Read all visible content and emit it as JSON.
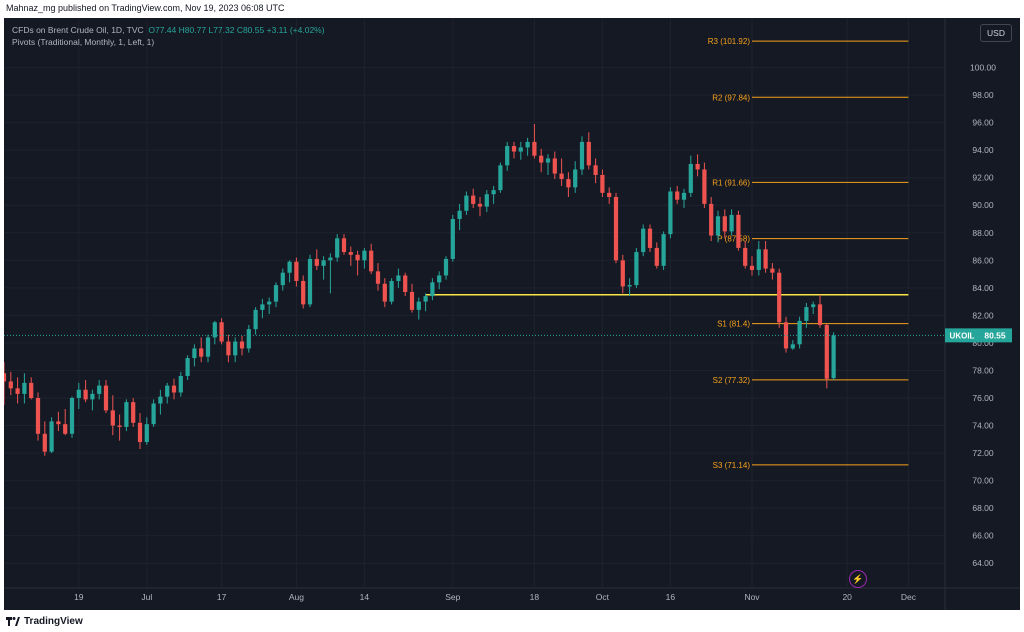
{
  "header": {
    "published": "Mahnaz_mg published on TradingView.com, Nov 19, 2023 06:08 UTC"
  },
  "legend": {
    "symbol": "CFDs on Brent Crude Oil, 1D, TVC",
    "o": "O77.44",
    "h": "H80.77",
    "l": "L77.32",
    "c": "C80.55",
    "chg": "+3.11 (+4.02%)",
    "indicator": "Pivots (Traditional, Monthly, 1, Left, 1)"
  },
  "currency_button": "USD",
  "footer": {
    "brand": "TradingView"
  },
  "colors": {
    "up": "#26a69a",
    "down": "#ef5350",
    "pivot": "#f7a21b",
    "level": "#f9e547",
    "bg": "#151924"
  },
  "chart_data": {
    "type": "candlestick",
    "symbol": "UKOIL",
    "last_price": {
      "label": "UKOIL",
      "value": "80.55"
    },
    "y_axis": {
      "range": [
        62.2,
        103.6
      ],
      "ticks": [
        "100.00",
        "98.00",
        "96.00",
        "94.00",
        "92.00",
        "90.00",
        "88.00",
        "86.00",
        "84.00",
        "82.00",
        "80.00",
        "78.00",
        "76.00",
        "74.00",
        "72.00",
        "70.00",
        "68.00",
        "66.00",
        "64.00"
      ]
    },
    "x_axis": {
      "range_bars": [
        0,
        150
      ],
      "ticks": [
        {
          "label": "19",
          "bar": 11
        },
        {
          "label": "Jul",
          "bar": 21
        },
        {
          "label": "17",
          "bar": 32
        },
        {
          "label": "Aug",
          "bar": 43
        },
        {
          "label": "14",
          "bar": 53
        },
        {
          "label": "Sep",
          "bar": 66
        },
        {
          "label": "18",
          "bar": 78
        },
        {
          "label": "Oct",
          "bar": 88
        },
        {
          "label": "16",
          "bar": 98
        },
        {
          "label": "Nov",
          "bar": 110
        },
        {
          "label": "20",
          "bar": 124
        },
        {
          "label": "Dec",
          "bar": 133
        }
      ]
    },
    "pivots": [
      {
        "label": "R3 (101.92)",
        "value": 101.92
      },
      {
        "label": "R2 (97.84)",
        "value": 97.84
      },
      {
        "label": "R1 (91.66)",
        "value": 91.66
      },
      {
        "label": "P (87.58)",
        "value": 87.58
      },
      {
        "label": "S1 (81.4)",
        "value": 81.4
      },
      {
        "label": "S2 (77.32)",
        "value": 77.32
      },
      {
        "label": "S3 (71.14)",
        "value": 71.14
      }
    ],
    "horizontal_level": {
      "value": 83.5,
      "from_bar": 62,
      "to_bar": 133
    },
    "candles": [
      {
        "o": 77.8,
        "h": 78.6,
        "l": 75.5,
        "c": 77.2
      },
      {
        "o": 77.2,
        "h": 77.9,
        "l": 76.2,
        "c": 76.7
      },
      {
        "o": 76.7,
        "h": 77.5,
        "l": 75.6,
        "c": 76.3
      },
      {
        "o": 76.3,
        "h": 77.8,
        "l": 75.6,
        "c": 77.1
      },
      {
        "o": 77.1,
        "h": 77.5,
        "l": 75.9,
        "c": 76.0
      },
      {
        "o": 76.0,
        "h": 76.4,
        "l": 72.9,
        "c": 73.4
      },
      {
        "o": 73.4,
        "h": 74.3,
        "l": 71.8,
        "c": 72.1
      },
      {
        "o": 72.1,
        "h": 74.6,
        "l": 72.0,
        "c": 74.3
      },
      {
        "o": 74.3,
        "h": 75.0,
        "l": 73.6,
        "c": 74.1
      },
      {
        "o": 74.1,
        "h": 75.2,
        "l": 73.3,
        "c": 73.4
      },
      {
        "o": 73.4,
        "h": 76.1,
        "l": 73.1,
        "c": 76.0
      },
      {
        "o": 76.0,
        "h": 77.1,
        "l": 75.2,
        "c": 76.6
      },
      {
        "o": 76.6,
        "h": 77.3,
        "l": 75.7,
        "c": 75.9
      },
      {
        "o": 75.9,
        "h": 76.6,
        "l": 75.1,
        "c": 76.3
      },
      {
        "o": 76.3,
        "h": 77.3,
        "l": 75.9,
        "c": 76.9
      },
      {
        "o": 76.9,
        "h": 77.3,
        "l": 74.9,
        "c": 75.1
      },
      {
        "o": 75.1,
        "h": 76.2,
        "l": 73.3,
        "c": 74.0
      },
      {
        "o": 74.0,
        "h": 74.8,
        "l": 72.9,
        "c": 73.9
      },
      {
        "o": 73.9,
        "h": 75.9,
        "l": 73.6,
        "c": 75.7
      },
      {
        "o": 75.7,
        "h": 76.0,
        "l": 73.9,
        "c": 74.2
      },
      {
        "o": 74.2,
        "h": 74.9,
        "l": 72.3,
        "c": 72.8
      },
      {
        "o": 72.8,
        "h": 74.6,
        "l": 72.6,
        "c": 74.1
      },
      {
        "o": 74.1,
        "h": 75.9,
        "l": 73.9,
        "c": 75.6
      },
      {
        "o": 75.6,
        "h": 76.6,
        "l": 74.8,
        "c": 76.1
      },
      {
        "o": 76.1,
        "h": 77.1,
        "l": 75.6,
        "c": 76.9
      },
      {
        "o": 76.9,
        "h": 77.4,
        "l": 75.9,
        "c": 76.4
      },
      {
        "o": 76.4,
        "h": 77.9,
        "l": 76.1,
        "c": 77.6
      },
      {
        "o": 77.6,
        "h": 79.1,
        "l": 77.3,
        "c": 78.9
      },
      {
        "o": 78.9,
        "h": 79.9,
        "l": 78.3,
        "c": 79.6
      },
      {
        "o": 79.6,
        "h": 80.4,
        "l": 78.6,
        "c": 79.0
      },
      {
        "o": 79.0,
        "h": 80.6,
        "l": 78.6,
        "c": 80.4
      },
      {
        "o": 80.4,
        "h": 81.6,
        "l": 79.9,
        "c": 81.5
      },
      {
        "o": 81.5,
        "h": 81.8,
        "l": 79.9,
        "c": 80.1
      },
      {
        "o": 80.1,
        "h": 80.6,
        "l": 78.6,
        "c": 79.1
      },
      {
        "o": 79.1,
        "h": 80.4,
        "l": 78.6,
        "c": 80.1
      },
      {
        "o": 80.1,
        "h": 80.5,
        "l": 79.1,
        "c": 79.6
      },
      {
        "o": 79.6,
        "h": 81.3,
        "l": 79.3,
        "c": 81.0
      },
      {
        "o": 81.0,
        "h": 82.6,
        "l": 80.6,
        "c": 82.4
      },
      {
        "o": 82.4,
        "h": 83.2,
        "l": 81.8,
        "c": 82.8
      },
      {
        "o": 82.8,
        "h": 83.3,
        "l": 82.1,
        "c": 83.0
      },
      {
        "o": 83.0,
        "h": 84.4,
        "l": 82.6,
        "c": 84.2
      },
      {
        "o": 84.2,
        "h": 85.4,
        "l": 83.8,
        "c": 85.1
      },
      {
        "o": 85.1,
        "h": 86.0,
        "l": 84.4,
        "c": 85.9
      },
      {
        "o": 85.9,
        "h": 86.2,
        "l": 84.1,
        "c": 84.5
      },
      {
        "o": 84.5,
        "h": 84.9,
        "l": 82.5,
        "c": 82.8
      },
      {
        "o": 82.8,
        "h": 86.4,
        "l": 82.6,
        "c": 86.1
      },
      {
        "o": 86.1,
        "h": 86.8,
        "l": 85.3,
        "c": 85.6
      },
      {
        "o": 85.6,
        "h": 86.3,
        "l": 84.6,
        "c": 86.0
      },
      {
        "o": 86.0,
        "h": 86.5,
        "l": 83.6,
        "c": 86.2
      },
      {
        "o": 86.2,
        "h": 87.9,
        "l": 85.9,
        "c": 87.6
      },
      {
        "o": 87.6,
        "h": 87.9,
        "l": 86.4,
        "c": 86.6
      },
      {
        "o": 86.6,
        "h": 87.0,
        "l": 85.6,
        "c": 86.4
      },
      {
        "o": 86.4,
        "h": 86.7,
        "l": 84.9,
        "c": 86.0
      },
      {
        "o": 86.0,
        "h": 86.9,
        "l": 85.4,
        "c": 86.7
      },
      {
        "o": 86.7,
        "h": 87.2,
        "l": 85.0,
        "c": 85.2
      },
      {
        "o": 85.2,
        "h": 85.8,
        "l": 83.8,
        "c": 84.3
      },
      {
        "o": 84.3,
        "h": 84.7,
        "l": 82.6,
        "c": 83.0
      },
      {
        "o": 83.0,
        "h": 84.7,
        "l": 82.8,
        "c": 84.5
      },
      {
        "o": 84.5,
        "h": 85.4,
        "l": 84.0,
        "c": 84.9
      },
      {
        "o": 84.9,
        "h": 85.1,
        "l": 83.4,
        "c": 83.7
      },
      {
        "o": 83.7,
        "h": 84.3,
        "l": 82.2,
        "c": 82.4
      },
      {
        "o": 82.4,
        "h": 83.3,
        "l": 81.7,
        "c": 83.0
      },
      {
        "o": 83.0,
        "h": 83.6,
        "l": 82.3,
        "c": 83.4
      },
      {
        "o": 83.4,
        "h": 84.7,
        "l": 83.1,
        "c": 84.4
      },
      {
        "o": 84.4,
        "h": 85.2,
        "l": 83.9,
        "c": 84.9
      },
      {
        "o": 84.9,
        "h": 86.3,
        "l": 84.6,
        "c": 86.1
      },
      {
        "o": 86.1,
        "h": 89.3,
        "l": 85.9,
        "c": 89.0
      },
      {
        "o": 89.0,
        "h": 90.1,
        "l": 88.2,
        "c": 89.6
      },
      {
        "o": 89.6,
        "h": 91.0,
        "l": 89.3,
        "c": 90.7
      },
      {
        "o": 90.7,
        "h": 91.2,
        "l": 89.8,
        "c": 90.1
      },
      {
        "o": 90.1,
        "h": 90.6,
        "l": 89.2,
        "c": 89.9
      },
      {
        "o": 89.9,
        "h": 91.1,
        "l": 89.5,
        "c": 90.8
      },
      {
        "o": 90.8,
        "h": 91.4,
        "l": 90.1,
        "c": 91.1
      },
      {
        "o": 91.1,
        "h": 93.1,
        "l": 90.9,
        "c": 92.9
      },
      {
        "o": 92.9,
        "h": 94.6,
        "l": 92.5,
        "c": 94.3
      },
      {
        "o": 94.3,
        "h": 94.6,
        "l": 93.4,
        "c": 93.9
      },
      {
        "o": 93.9,
        "h": 94.6,
        "l": 93.3,
        "c": 94.2
      },
      {
        "o": 94.2,
        "h": 94.9,
        "l": 93.6,
        "c": 94.6
      },
      {
        "o": 94.6,
        "h": 95.9,
        "l": 93.4,
        "c": 93.6
      },
      {
        "o": 93.6,
        "h": 94.1,
        "l": 92.4,
        "c": 93.1
      },
      {
        "o": 93.1,
        "h": 93.7,
        "l": 92.2,
        "c": 93.4
      },
      {
        "o": 93.4,
        "h": 93.9,
        "l": 91.9,
        "c": 92.3
      },
      {
        "o": 92.3,
        "h": 93.4,
        "l": 91.4,
        "c": 91.9
      },
      {
        "o": 91.9,
        "h": 92.4,
        "l": 90.6,
        "c": 91.3
      },
      {
        "o": 91.3,
        "h": 93.2,
        "l": 90.9,
        "c": 92.6
      },
      {
        "o": 92.6,
        "h": 95.0,
        "l": 92.2,
        "c": 94.6
      },
      {
        "o": 94.6,
        "h": 95.3,
        "l": 92.6,
        "c": 92.9
      },
      {
        "o": 92.9,
        "h": 93.4,
        "l": 91.6,
        "c": 92.2
      },
      {
        "o": 92.2,
        "h": 92.6,
        "l": 90.6,
        "c": 90.9
      },
      {
        "o": 90.9,
        "h": 91.3,
        "l": 90.1,
        "c": 90.6
      },
      {
        "o": 90.6,
        "h": 90.9,
        "l": 85.8,
        "c": 86.0
      },
      {
        "o": 86.0,
        "h": 86.4,
        "l": 83.6,
        "c": 84.1
      },
      {
        "o": 84.1,
        "h": 84.7,
        "l": 83.4,
        "c": 84.2
      },
      {
        "o": 84.2,
        "h": 86.9,
        "l": 84.0,
        "c": 86.6
      },
      {
        "o": 86.6,
        "h": 88.6,
        "l": 86.3,
        "c": 88.3
      },
      {
        "o": 88.3,
        "h": 88.6,
        "l": 86.6,
        "c": 86.9
      },
      {
        "o": 86.9,
        "h": 87.3,
        "l": 85.4,
        "c": 85.6
      },
      {
        "o": 85.6,
        "h": 88.1,
        "l": 85.3,
        "c": 87.9
      },
      {
        "o": 87.9,
        "h": 91.3,
        "l": 87.6,
        "c": 91.0
      },
      {
        "o": 91.0,
        "h": 91.4,
        "l": 90.1,
        "c": 90.4
      },
      {
        "o": 90.4,
        "h": 91.2,
        "l": 89.8,
        "c": 90.9
      },
      {
        "o": 90.9,
        "h": 93.6,
        "l": 90.6,
        "c": 93.0
      },
      {
        "o": 93.0,
        "h": 93.7,
        "l": 92.1,
        "c": 92.6
      },
      {
        "o": 92.6,
        "h": 93.1,
        "l": 89.8,
        "c": 90.1
      },
      {
        "o": 90.1,
        "h": 90.6,
        "l": 87.4,
        "c": 87.8
      },
      {
        "o": 87.8,
        "h": 89.6,
        "l": 87.3,
        "c": 89.2
      },
      {
        "o": 89.2,
        "h": 89.7,
        "l": 87.6,
        "c": 88.1
      },
      {
        "o": 88.1,
        "h": 89.7,
        "l": 87.8,
        "c": 89.3
      },
      {
        "o": 89.3,
        "h": 89.6,
        "l": 86.7,
        "c": 86.9
      },
      {
        "o": 86.9,
        "h": 87.4,
        "l": 85.4,
        "c": 85.6
      },
      {
        "o": 85.6,
        "h": 86.3,
        "l": 84.9,
        "c": 85.3
      },
      {
        "o": 85.3,
        "h": 87.4,
        "l": 84.9,
        "c": 86.8
      },
      {
        "o": 86.8,
        "h": 87.4,
        "l": 85.1,
        "c": 85.4
      },
      {
        "o": 85.4,
        "h": 85.8,
        "l": 84.6,
        "c": 85.1
      },
      {
        "o": 85.1,
        "h": 85.4,
        "l": 81.1,
        "c": 81.5
      },
      {
        "o": 81.5,
        "h": 81.9,
        "l": 79.3,
        "c": 79.6
      },
      {
        "o": 79.6,
        "h": 80.2,
        "l": 79.5,
        "c": 79.9
      },
      {
        "o": 79.9,
        "h": 81.9,
        "l": 79.6,
        "c": 81.6
      },
      {
        "o": 81.6,
        "h": 82.9,
        "l": 81.1,
        "c": 82.6
      },
      {
        "o": 82.6,
        "h": 83.0,
        "l": 82.1,
        "c": 82.8
      },
      {
        "o": 82.8,
        "h": 83.5,
        "l": 81.1,
        "c": 81.3
      },
      {
        "o": 81.3,
        "h": 81.4,
        "l": 76.7,
        "c": 77.4
      },
      {
        "o": 77.44,
        "h": 80.77,
        "l": 77.32,
        "c": 80.55
      }
    ]
  }
}
